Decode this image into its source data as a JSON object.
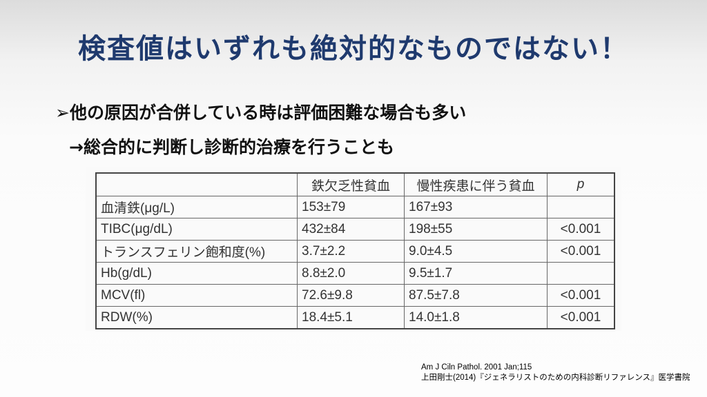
{
  "title": "検査値はいずれも絶対的なものではない！",
  "bullets": {
    "line1": "➢他の原因が合併している時は評価困難な場合も多い",
    "line2": "→総合的に判断し診断的治療を行うことも"
  },
  "table": {
    "headers": [
      "",
      "鉄欠乏性貧血",
      "慢性疾患に伴う貧血",
      "p"
    ],
    "rows": [
      [
        "血清鉄(μg/L)",
        "153±79",
        "167±93",
        ""
      ],
      [
        "TIBC(μg/dL)",
        "432±84",
        "198±55",
        "<0.001"
      ],
      [
        "トランスフェリン飽和度(%)",
        "3.7±2.2",
        "9.0±4.5",
        "<0.001"
      ],
      [
        "Hb(g/dL)",
        "8.8±2.0",
        "9.5±1.7",
        ""
      ],
      [
        "MCV(fl)",
        "72.6±9.8",
        "87.5±7.8",
        "<0.001"
      ],
      [
        "RDW(%)",
        "18.4±5.1",
        "14.0±1.8",
        "<0.001"
      ]
    ]
  },
  "references": {
    "line1": "Am J Ciln Pathol. 2001 Jan;115",
    "line2": "上田剛士(2014)『ジェネラリストのための内科診断リファレンス』医学書院"
  },
  "colors": {
    "title": "#1f3a6e"
  }
}
